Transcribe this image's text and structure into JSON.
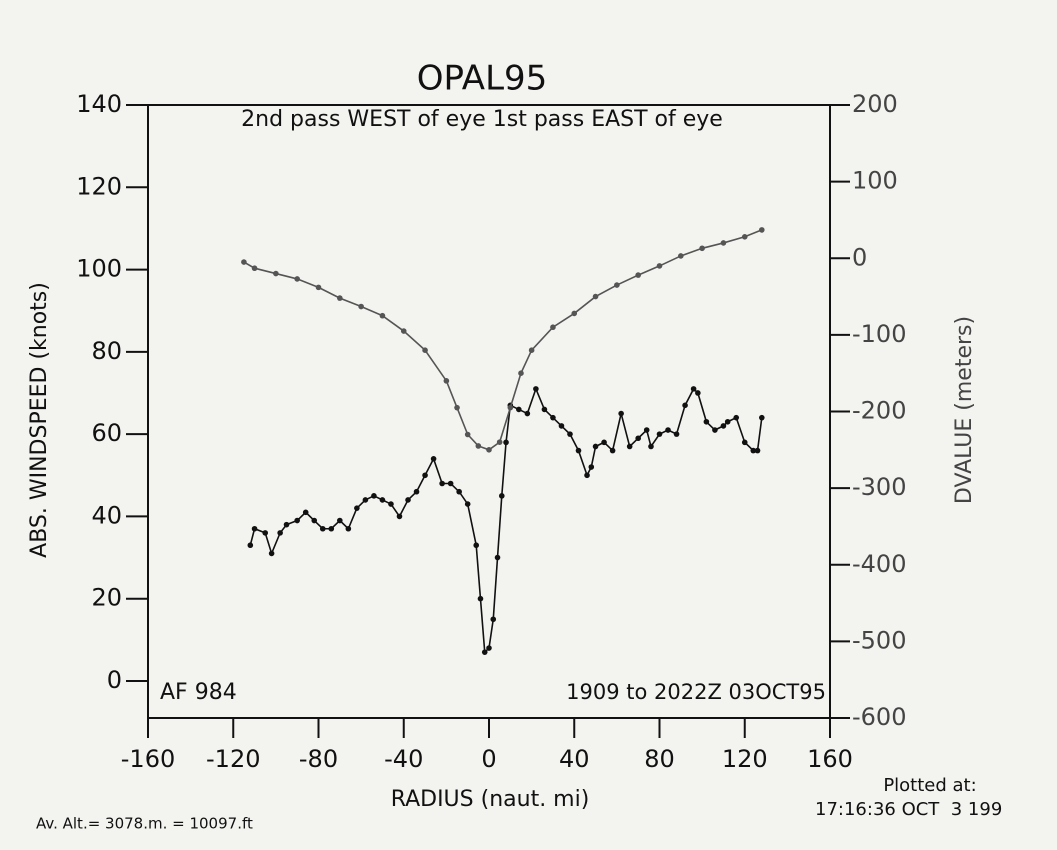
{
  "chart_data": {
    "type": "line",
    "title": "OPAL95",
    "subtitle": "2nd pass WEST of eye 1st pass EAST of eye",
    "xlabel": "RADIUS (naut. mi)",
    "ylabel": "ABS. WINDSPEED (knots)",
    "y2label": "DVALUE (meters)",
    "annotations": [
      "AF 984",
      "1909 to 2022Z 03OCT95",
      "Av. Alt.= 3078.m. = 10097.ft",
      "Plotted at:",
      "17:16:36 OCT  3 199"
    ],
    "xlim": [
      -160,
      160
    ],
    "xticks": [
      -160,
      -120,
      -80,
      -40,
      0,
      40,
      80,
      120,
      160
    ],
    "ylim": [
      -9,
      140
    ],
    "yticks": [
      0,
      20,
      40,
      60,
      80,
      100,
      120,
      140
    ],
    "y2lim": [
      -600,
      200
    ],
    "y2ticks": [
      -600,
      -500,
      -400,
      -300,
      -200,
      -100,
      0,
      100,
      200
    ],
    "series": [
      {
        "color": "#111111",
        "axis": "y",
        "x": [
          -112,
          -110,
          -105,
          -102,
          -98,
          -95,
          -90,
          -86,
          -82,
          -78,
          -74,
          -70,
          -66,
          -62,
          -58,
          -54,
          -50,
          -46,
          -42,
          -38,
          -34,
          -30,
          -26,
          -22,
          -18,
          -14,
          -10,
          -6,
          -4,
          -2,
          0,
          2,
          4,
          6,
          8,
          10,
          14,
          18,
          22,
          26,
          30,
          34,
          38,
          42,
          46,
          48,
          50,
          54,
          58,
          62,
          66,
          70,
          74,
          76,
          80,
          84,
          88,
          92,
          96,
          98,
          102,
          106,
          110,
          112,
          116,
          120,
          124,
          126,
          128
        ],
        "values": [
          33,
          37,
          36,
          31,
          36,
          38,
          39,
          41,
          39,
          37,
          37,
          39,
          37,
          42,
          44,
          45,
          44,
          43,
          40,
          44,
          46,
          50,
          54,
          48,
          48,
          46,
          43,
          33,
          20,
          7,
          8,
          15,
          30,
          45,
          58,
          67,
          66,
          65,
          71,
          66,
          64,
          62,
          60,
          56,
          50,
          52,
          57,
          58,
          56,
          65,
          57,
          59,
          61,
          57,
          60,
          61,
          60,
          67,
          71,
          70,
          63,
          61,
          62,
          63,
          64,
          58,
          56,
          56,
          64
        ]
      },
      {
        "color": "#555555",
        "axis": "y2",
        "x": [
          -115,
          -110,
          -100,
          -90,
          -80,
          -70,
          -60,
          -50,
          -40,
          -30,
          -20,
          -15,
          -10,
          -5,
          0,
          5,
          10,
          15,
          20,
          30,
          40,
          50,
          60,
          70,
          80,
          90,
          100,
          110,
          120,
          128
        ],
        "values": [
          -5,
          -13,
          -20,
          -27,
          -38,
          -52,
          -63,
          -75,
          -95,
          -120,
          -160,
          -195,
          -230,
          -245,
          -250,
          -240,
          -195,
          -150,
          -120,
          -90,
          -72,
          -50,
          -35,
          -22,
          -10,
          3,
          13,
          20,
          28,
          37
        ]
      }
    ]
  }
}
